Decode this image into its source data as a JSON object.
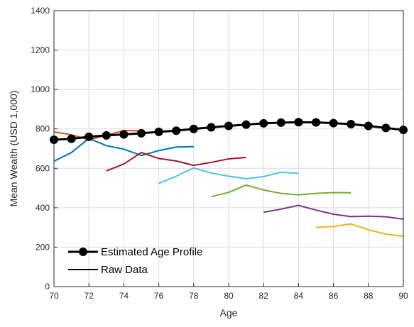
{
  "chart_data": {
    "type": "line",
    "xlabel": "Age",
    "ylabel": "Mean Wealth (USD 1,000)",
    "xlim": [
      70,
      90
    ],
    "ylim": [
      0,
      1400
    ],
    "xticks": [
      70,
      72,
      74,
      76,
      78,
      80,
      82,
      84,
      86,
      88,
      90
    ],
    "yticks": [
      0,
      200,
      400,
      600,
      800,
      1000,
      1200,
      1400
    ],
    "grid": true,
    "legend_position": "bottom-left",
    "legend": [
      {
        "label": "Estimated Age Profile",
        "style": "black-line-with-markers"
      },
      {
        "label": "Raw Data",
        "style": "black-line"
      }
    ],
    "series": [
      {
        "name": "Estimated Age Profile",
        "color": "#000000",
        "markers": true,
        "x": [
          70,
          71,
          72,
          73,
          74,
          75,
          76,
          77,
          78,
          79,
          80,
          81,
          82,
          83,
          84,
          85,
          86,
          87,
          88,
          89,
          90
        ],
        "y": [
          745,
          750,
          760,
          767,
          772,
          778,
          785,
          791,
          800,
          808,
          815,
          822,
          828,
          832,
          834,
          833,
          829,
          824,
          815,
          805,
          795
        ]
      },
      {
        "color": "#0072BD",
        "x": [
          70,
          71,
          72,
          73,
          74,
          75,
          76,
          77,
          78
        ],
        "y": [
          636,
          680,
          752,
          715,
          697,
          665,
          690,
          708,
          710
        ]
      },
      {
        "color": "#D95319",
        "x": [
          70,
          71,
          72,
          73,
          74,
          75
        ],
        "y": [
          785,
          770,
          745,
          768,
          792,
          790
        ]
      },
      {
        "color": "#A2142F",
        "x": [
          73,
          74,
          75,
          76,
          77,
          78,
          79,
          80,
          81
        ],
        "y": [
          587,
          622,
          680,
          650,
          637,
          615,
          630,
          648,
          655
        ]
      },
      {
        "color": "#4DBEEE",
        "x": [
          76,
          77,
          78,
          79,
          80,
          81,
          82,
          83,
          84
        ],
        "y": [
          524,
          560,
          602,
          576,
          560,
          547,
          558,
          580,
          575
        ]
      },
      {
        "color": "#77AC30",
        "x": [
          79,
          80,
          81,
          82,
          83,
          84,
          85,
          86,
          87
        ],
        "y": [
          456,
          478,
          515,
          490,
          473,
          465,
          473,
          477,
          476
        ]
      },
      {
        "color": "#7E2F8E",
        "x": [
          82,
          83,
          84,
          85,
          86,
          87,
          88,
          89,
          90
        ],
        "y": [
          377,
          393,
          412,
          388,
          367,
          355,
          357,
          354,
          342
        ]
      },
      {
        "color": "#EDB120",
        "x": [
          85,
          86,
          87,
          88,
          89,
          90
        ],
        "y": [
          300,
          305,
          318,
          288,
          266,
          255
        ]
      }
    ]
  }
}
